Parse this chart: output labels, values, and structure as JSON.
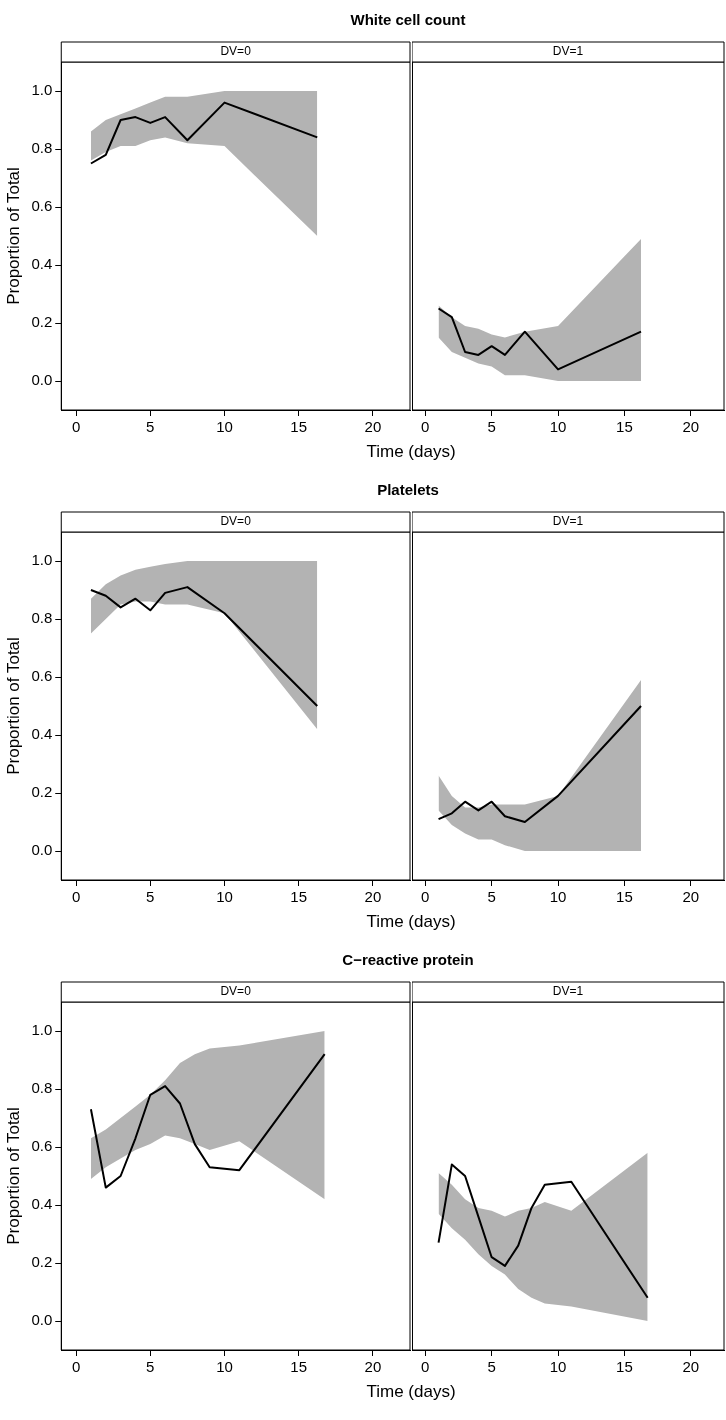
{
  "chart_data": [
    {
      "type": "line",
      "title": "White cell count",
      "subtitle": "DV=0",
      "xlabel": "Time (days)",
      "ylabel": "Proportion of Total",
      "x": [
        1,
        2,
        3,
        4,
        5,
        6,
        7.5,
        10,
        16.25
      ],
      "series": [
        {
          "color": "#000000",
          "values": [
            0.75,
            0.78,
            0.9,
            0.91,
            0.89,
            0.91,
            0.83,
            0.96,
            0.84
          ],
          "lower": [
            0.76,
            0.79,
            0.81,
            0.81,
            0.83,
            0.84,
            0.82,
            0.81,
            0.5
          ],
          "upper": [
            0.86,
            0.9,
            0.92,
            0.94,
            0.96,
            0.98,
            0.98,
            1,
            1
          ]
        }
      ],
      "xlim": [
        -1,
        22.5
      ],
      "xticks": [
        0,
        5,
        10,
        15,
        20
      ],
      "ylim": [
        -0.1,
        1.1
      ],
      "yticks": [
        {
          "value": 0,
          "label": "0.0"
        },
        {
          "value": 0.2,
          "label": "0.2"
        },
        {
          "value": 0.4,
          "label": "0.4"
        },
        {
          "value": 0.6,
          "label": "0.6"
        },
        {
          "value": 0.8,
          "label": "0.8"
        },
        {
          "value": 1,
          "label": "1.0"
        }
      ],
      "grid": false,
      "marker": "none",
      "line_style": "solid"
    },
    {
      "type": "line",
      "subtitle": "DV=1",
      "x": [
        1,
        2,
        3,
        4,
        5,
        6,
        7.5,
        10,
        16.25
      ],
      "series": [
        {
          "color": "#000000",
          "values": [
            0.25,
            0.22,
            0.1,
            0.09,
            0.12,
            0.09,
            0.17,
            0.04,
            0.17
          ],
          "lower": [
            0.15,
            0.1,
            0.08,
            0.06,
            0.05,
            0.02,
            0.02,
            0,
            0
          ],
          "upper": [
            0.26,
            0.22,
            0.19,
            0.18,
            0.16,
            0.15,
            0.17,
            0.19,
            0.49
          ]
        }
      ],
      "xlim": [
        -1,
        22.5
      ],
      "xticks": [
        0,
        5,
        10,
        15,
        20
      ],
      "ylim": [
        -0.1,
        1.1
      ],
      "tick_labels": "x",
      "grid": false,
      "marker": "none",
      "line_style": "solid"
    },
    {
      "type": "line",
      "title": "Platelets",
      "subtitle": "DV=0",
      "xlabel": "Time (days)",
      "ylabel": "Proportion of Total",
      "x": [
        1,
        2,
        3,
        4,
        5,
        6,
        7.5,
        10,
        16.25
      ],
      "series": [
        {
          "color": "#000000",
          "values": [
            0.9,
            0.88,
            0.84,
            0.87,
            0.83,
            0.89,
            0.91,
            0.82,
            0.5
          ],
          "lower": [
            0.75,
            0.8,
            0.85,
            0.86,
            0.86,
            0.85,
            0.85,
            0.82,
            0.42
          ],
          "upper": [
            0.87,
            0.92,
            0.95,
            0.97,
            0.98,
            0.99,
            1,
            1,
            1
          ]
        }
      ],
      "xlim": [
        -1,
        22.5
      ],
      "xticks": [
        0,
        5,
        10,
        15,
        20
      ],
      "ylim": [
        -0.1,
        1.1
      ],
      "yticks": [
        {
          "value": 0,
          "label": "0.0"
        },
        {
          "value": 0.2,
          "label": "0.2"
        },
        {
          "value": 0.4,
          "label": "0.4"
        },
        {
          "value": 0.6,
          "label": "0.6"
        },
        {
          "value": 0.8,
          "label": "0.8"
        },
        {
          "value": 1,
          "label": "1.0"
        }
      ],
      "grid": false,
      "marker": "none",
      "line_style": "solid"
    },
    {
      "type": "line",
      "subtitle": "DV=1",
      "x": [
        1,
        2,
        3,
        4,
        5,
        6,
        7.5,
        10,
        16.25
      ],
      "series": [
        {
          "color": "#000000",
          "values": [
            0.11,
            0.13,
            0.17,
            0.14,
            0.17,
            0.12,
            0.1,
            0.19,
            0.5
          ],
          "lower": [
            0.14,
            0.09,
            0.06,
            0.04,
            0.04,
            0.02,
            0,
            0,
            0
          ],
          "upper": [
            0.26,
            0.19,
            0.15,
            0.15,
            0.16,
            0.16,
            0.16,
            0.19,
            0.59
          ]
        }
      ],
      "xlim": [
        -1,
        22.5
      ],
      "xticks": [
        0,
        5,
        10,
        15,
        20
      ],
      "ylim": [
        -0.1,
        1.1
      ],
      "tick_labels": "x",
      "grid": false,
      "marker": "none",
      "line_style": "solid"
    },
    {
      "type": "line",
      "title": "C−reactive protein",
      "subtitle": "DV=0",
      "xlabel": "Time (days)",
      "ylabel": "Proportion of Total",
      "x": [
        1,
        2,
        3,
        4,
        5,
        6,
        7,
        8,
        9,
        11,
        16.75
      ],
      "series": [
        {
          "color": "#000000",
          "values": [
            0.73,
            0.46,
            0.5,
            0.63,
            0.78,
            0.81,
            0.75,
            0.61,
            0.53,
            0.52,
            0.92
          ],
          "lower": [
            0.49,
            0.53,
            0.56,
            0.59,
            0.61,
            0.64,
            0.63,
            0.61,
            0.59,
            0.62,
            0.42
          ],
          "upper": [
            0.63,
            0.66,
            0.7,
            0.74,
            0.78,
            0.83,
            0.89,
            0.92,
            0.94,
            0.95,
            1
          ]
        }
      ],
      "xlim": [
        -1,
        22.5
      ],
      "xticks": [
        0,
        5,
        10,
        15,
        20
      ],
      "ylim": [
        -0.1,
        1.1
      ],
      "yticks": [
        {
          "value": 0,
          "label": "0.0"
        },
        {
          "value": 0.2,
          "label": "0.2"
        },
        {
          "value": 0.4,
          "label": "0.4"
        },
        {
          "value": 0.6,
          "label": "0.6"
        },
        {
          "value": 0.8,
          "label": "0.8"
        },
        {
          "value": 1,
          "label": "1.0"
        }
      ],
      "grid": false,
      "marker": "none",
      "line_style": "solid"
    },
    {
      "type": "line",
      "subtitle": "DV=1",
      "x": [
        1,
        2,
        3,
        4,
        5,
        6,
        7,
        8,
        9,
        11,
        16.75
      ],
      "series": [
        {
          "color": "#000000",
          "values": [
            0.27,
            0.54,
            0.5,
            0.36,
            0.22,
            0.19,
            0.26,
            0.39,
            0.47,
            0.48,
            0.08
          ],
          "lower": [
            0.37,
            0.32,
            0.28,
            0.23,
            0.19,
            0.16,
            0.11,
            0.08,
            0.06,
            0.05,
            0
          ],
          "upper": [
            0.51,
            0.47,
            0.42,
            0.39,
            0.38,
            0.36,
            0.38,
            0.39,
            0.41,
            0.38,
            0.58
          ]
        }
      ],
      "xlim": [
        -1,
        22.5
      ],
      "xticks": [
        0,
        5,
        10,
        15,
        20
      ],
      "ylim": [
        -0.1,
        1.1
      ],
      "tick_labels": "x",
      "grid": false,
      "marker": "none",
      "line_style": "solid"
    }
  ]
}
